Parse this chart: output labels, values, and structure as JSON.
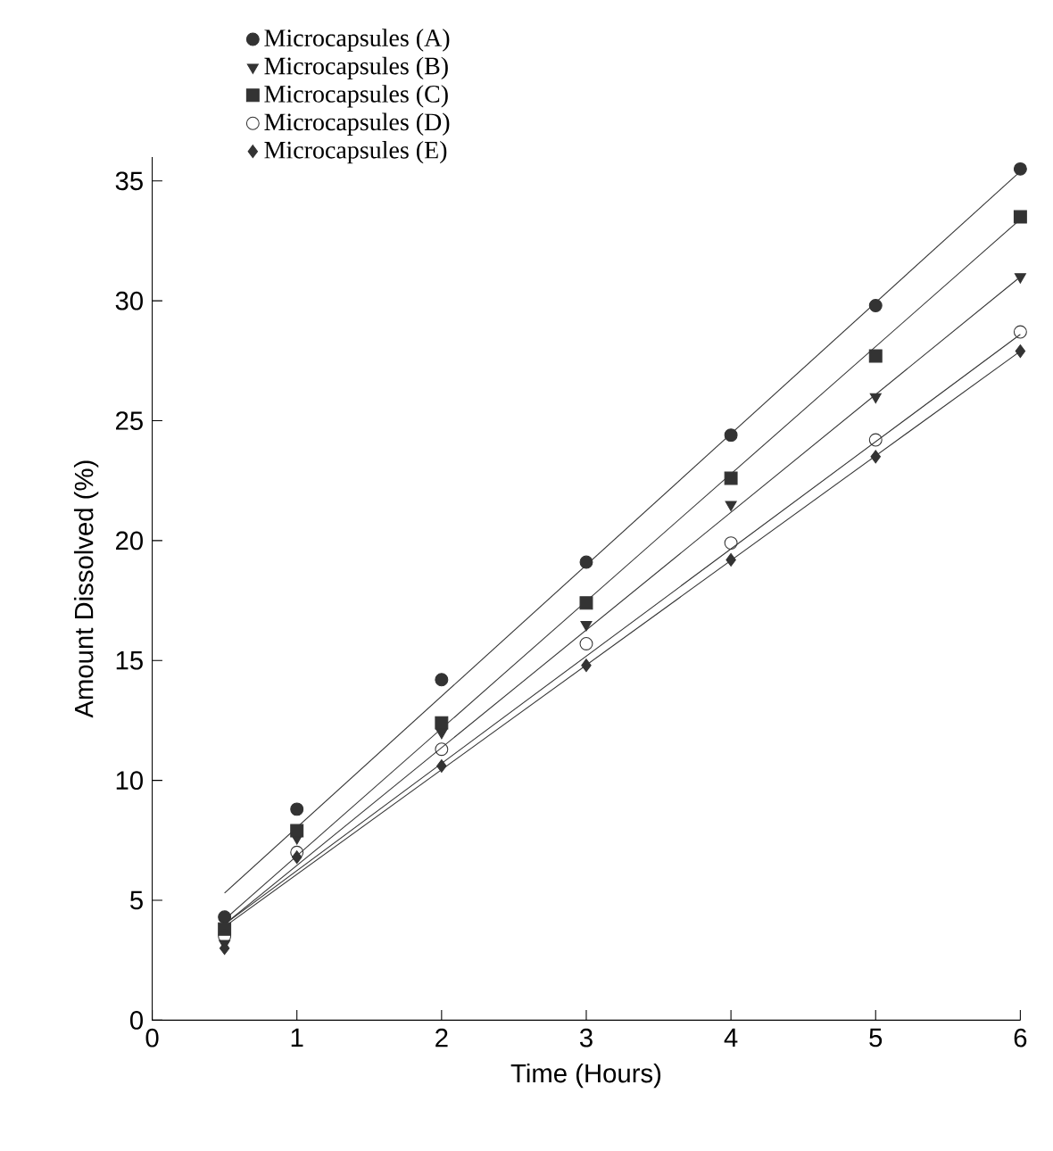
{
  "chart_data": {
    "type": "scatter",
    "xlabel": "Time (Hours)",
    "ylabel": "Amount Dissolved (%)",
    "xlim": [
      0,
      6
    ],
    "ylim": [
      0,
      36
    ],
    "xticks": [
      0,
      1,
      2,
      3,
      4,
      5,
      6
    ],
    "yticks": [
      0,
      5,
      10,
      15,
      20,
      25,
      30,
      35
    ],
    "legend": "top left",
    "grid": false,
    "series": [
      {
        "name": "Microcapsules (A)",
        "marker": "circle",
        "color": "#333333",
        "x": [
          0.5,
          1,
          2,
          3,
          4,
          5,
          6
        ],
        "values": [
          4.3,
          8.8,
          14.2,
          19.1,
          24.4,
          29.8,
          35.5
        ]
      },
      {
        "name": "Microcapsules (B)",
        "marker": "triangle",
        "color": "#333333",
        "x": [
          0.5,
          1,
          2,
          3,
          4,
          5,
          6
        ],
        "values": [
          3.2,
          7.6,
          12.0,
          16.5,
          21.5,
          26.0,
          31.0
        ]
      },
      {
        "name": "Microcapsules (C)",
        "marker": "square",
        "color": "#333333",
        "x": [
          0.5,
          1,
          2,
          3,
          4,
          5,
          6
        ],
        "values": [
          3.8,
          7.9,
          12.4,
          17.4,
          22.6,
          27.7,
          33.5
        ]
      },
      {
        "name": "Microcapsules (D)",
        "marker": "open circle",
        "color": "#333333",
        "x": [
          0.5,
          1,
          2,
          3,
          4,
          5,
          6
        ],
        "values": [
          3.5,
          7.0,
          11.3,
          15.7,
          19.9,
          24.2,
          28.7
        ]
      },
      {
        "name": "Microcapsules (E)",
        "marker": "diamond",
        "color": "#333333",
        "x": [
          0.5,
          1,
          2,
          3,
          4,
          5,
          6
        ],
        "values": [
          3.0,
          6.8,
          10.6,
          14.8,
          19.2,
          23.5,
          27.9
        ]
      },
      {
        "type": "line",
        "marker": "none",
        "color": "#333333",
        "x": [
          0.5,
          6
        ],
        "values": [
          5.3,
          35.4
        ]
      },
      {
        "type": "line",
        "marker": "none",
        "color": "#333333",
        "x": [
          0.5,
          6
        ],
        "values": [
          4.0,
          31.0
        ]
      },
      {
        "type": "line",
        "marker": "none",
        "color": "#333333",
        "x": [
          0.5,
          6
        ],
        "values": [
          4.2,
          33.4
        ]
      },
      {
        "type": "line",
        "marker": "none",
        "color": "#333333",
        "x": [
          0.5,
          6
        ],
        "values": [
          4.0,
          28.6
        ]
      },
      {
        "type": "line",
        "marker": "none",
        "color": "#333333",
        "x": [
          0.5,
          6
        ],
        "values": [
          3.9,
          27.9
        ]
      }
    ]
  }
}
